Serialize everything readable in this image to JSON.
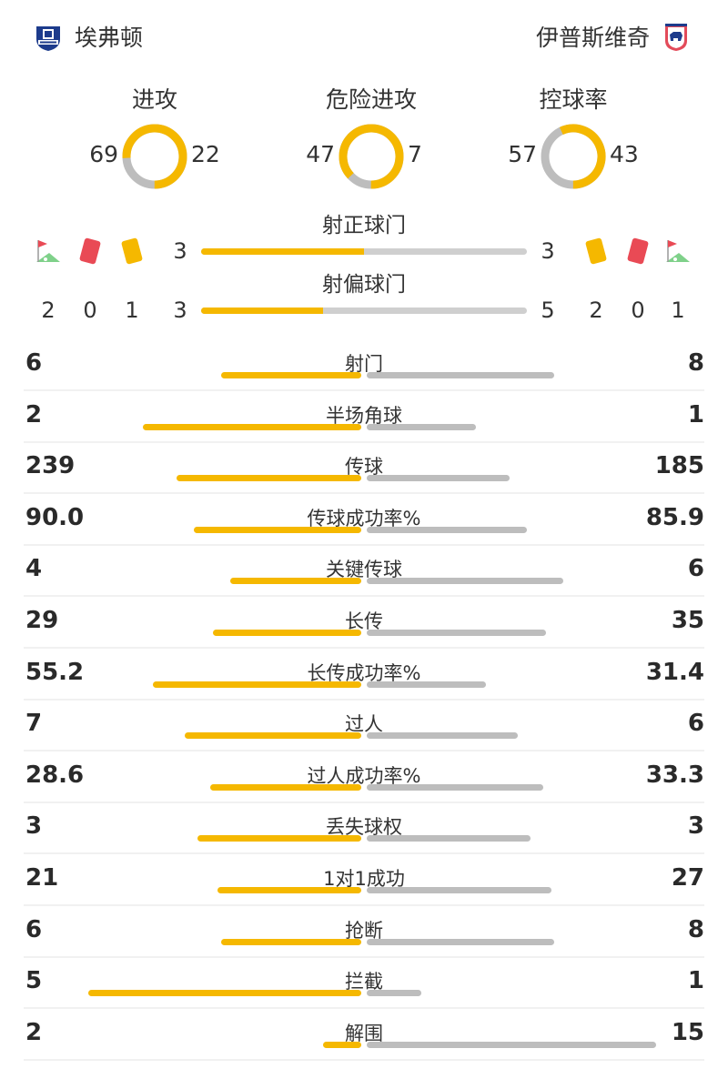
{
  "teams": {
    "home": {
      "name": "埃弗顿",
      "badge_icon": "everton-crest-icon"
    },
    "away": {
      "name": "伊普斯维奇",
      "badge_icon": "ipswich-crest-icon"
    }
  },
  "colors": {
    "home": "#f5b800",
    "away": "#bdbdbd"
  },
  "donuts": [
    {
      "title": "进攻",
      "home": "69",
      "away": "22",
      "home_value": 69,
      "away_value": 22
    },
    {
      "title": "危险进攻",
      "home": "47",
      "away": "7",
      "home_value": 47,
      "away_value": 7
    },
    {
      "title": "控球率",
      "home": "57",
      "away": "43",
      "home_value": 57,
      "away_value": 43
    }
  ],
  "shots_on_target": {
    "title": "射正球门",
    "home": "3",
    "away": "3",
    "home_value": 3,
    "away_value": 3
  },
  "shots_off_target": {
    "title": "射偏球门",
    "home": "3",
    "away": "5",
    "home_value": 3,
    "away_value": 5
  },
  "home_cards": {
    "corners": "2",
    "red": "0",
    "yellow": "1",
    "icons": [
      "corner-flag-icon",
      "red-card-icon",
      "yellow-card-icon"
    ]
  },
  "away_cards": {
    "yellow": "2",
    "red": "0",
    "corners": "1",
    "icons": [
      "yellow-card-icon",
      "red-card-icon",
      "corner-flag-icon"
    ]
  },
  "stats": [
    {
      "label": "射门",
      "home": "6",
      "away": "8",
      "home_value": 6,
      "away_value": 8
    },
    {
      "label": "半场角球",
      "home": "2",
      "away": "1",
      "home_value": 2,
      "away_value": 1
    },
    {
      "label": "传球",
      "home": "239",
      "away": "185",
      "home_value": 239,
      "away_value": 185
    },
    {
      "label": "传球成功率%",
      "home": "90.0",
      "away": "85.9",
      "home_value": 90.0,
      "away_value": 85.9
    },
    {
      "label": "关键传球",
      "home": "4",
      "away": "6",
      "home_value": 4,
      "away_value": 6
    },
    {
      "label": "长传",
      "home": "29",
      "away": "35",
      "home_value": 29,
      "away_value": 35
    },
    {
      "label": "长传成功率%",
      "home": "55.2",
      "away": "31.4",
      "home_value": 55.2,
      "away_value": 31.4
    },
    {
      "label": "过人",
      "home": "7",
      "away": "6",
      "home_value": 7,
      "away_value": 6
    },
    {
      "label": "过人成功率%",
      "home": "28.6",
      "away": "33.3",
      "home_value": 28.6,
      "away_value": 33.3
    },
    {
      "label": "丢失球权",
      "home": "3",
      "away": "3",
      "home_value": 3,
      "away_value": 3
    },
    {
      "label": "1对1成功",
      "home": "21",
      "away": "27",
      "home_value": 21,
      "away_value": 27
    },
    {
      "label": "抢断",
      "home": "6",
      "away": "8",
      "home_value": 6,
      "away_value": 8
    },
    {
      "label": "拦截",
      "home": "5",
      "away": "1",
      "home_value": 5,
      "away_value": 1
    },
    {
      "label": "解围",
      "home": "2",
      "away": "15",
      "home_value": 2,
      "away_value": 15
    }
  ]
}
